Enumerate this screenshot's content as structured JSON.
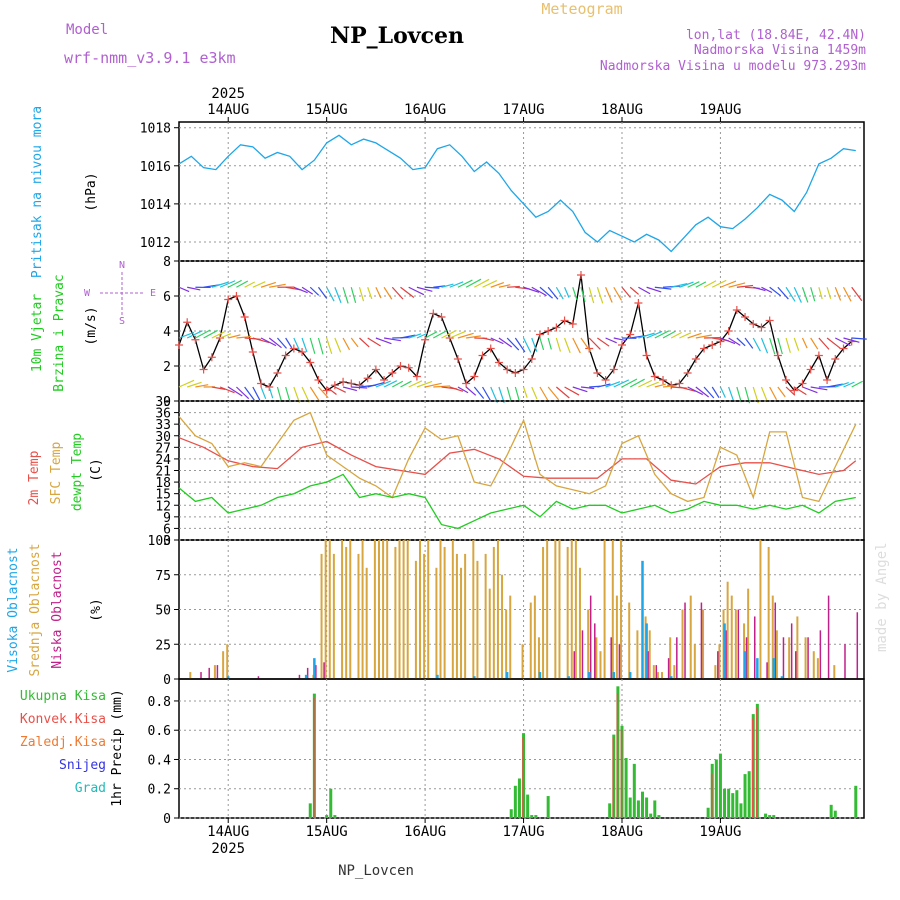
{
  "header": {
    "model_label": "Model",
    "model_name": "wrf-nmm_v3.9.1 e3km",
    "station": "NP_Lovcen",
    "meteogram": "Meteogram",
    "lonlat": "lon,lat (18.84E, 42.4N)",
    "elevation": "Nadmorska Visina 1459m",
    "elevation_model": "Nadmorska Visina u modelu 973.293m",
    "footer_station": "NP_Lovcen",
    "watermark": "made by Angel"
  },
  "colors": {
    "pressure": "#1ea6e8",
    "t2m": "#e8504a",
    "sfc": "#d8a640",
    "dewpt": "#22cc22",
    "wind_speed": "#000000",
    "wind_speed_marker": "#e8504a",
    "high_cloud": "#1ea6e8",
    "mid_cloud": "#d8a640",
    "low_cloud": "#c0208a",
    "total_precip": "#33bb33",
    "conv_precip": "#e8504a",
    "frozen_precip": "#ef7a30",
    "snow": "#3333dd",
    "hail": "#22bbbb",
    "purple_text": "#b060d0",
    "grid": "#999999"
  },
  "chart_data": [
    {
      "type": "line",
      "id": "pressure",
      "ylabel_lines": [
        "Pritisak na nivou mora"
      ],
      "unit": "(hPa)",
      "ylim": [
        1011,
        1018.3
      ],
      "yticks": [
        1012,
        1014,
        1016,
        1018
      ],
      "grid": true,
      "series": [
        {
          "name": "MSLP",
          "x": [
            0,
            3,
            6,
            9,
            12,
            15,
            18,
            21,
            24,
            27,
            30,
            33,
            36,
            39,
            42,
            45,
            48,
            51,
            54,
            57,
            60,
            63,
            66,
            69,
            72,
            75,
            78,
            81,
            84,
            87,
            90,
            93,
            96,
            99,
            102,
            105,
            108,
            111,
            114,
            117,
            120,
            123,
            126,
            129,
            132,
            135,
            138,
            141,
            144,
            147,
            150,
            153,
            156,
            159,
            162,
            165
          ],
          "values": [
            1016.1,
            1016.5,
            1015.9,
            1015.8,
            1016.5,
            1017.1,
            1017.0,
            1016.4,
            1016.7,
            1016.5,
            1015.8,
            1016.3,
            1017.2,
            1017.6,
            1017.1,
            1017.4,
            1017.2,
            1016.8,
            1016.4,
            1015.8,
            1015.9,
            1016.9,
            1017.1,
            1016.5,
            1015.7,
            1016.2,
            1015.6,
            1014.7,
            1014.0,
            1013.3,
            1013.6,
            1014.2,
            1013.6,
            1012.5,
            1012.0,
            1012.6,
            1012.3,
            1012.0,
            1012.4,
            1012.1,
            1011.5,
            1012.2,
            1012.9,
            1013.3,
            1012.8,
            1012.7,
            1013.2,
            1013.8,
            1014.5,
            1014.2,
            1013.6,
            1014.6,
            1016.1,
            1016.4,
            1016.9,
            1016.8
          ]
        }
      ]
    },
    {
      "type": "line",
      "id": "wind",
      "ylabel_lines": [
        "10m Vjetar",
        "Brzina i Pravac"
      ],
      "unit": "(m/s)",
      "compass": [
        "N",
        "W",
        "E",
        "S"
      ],
      "ylim": [
        0,
        8
      ],
      "yticks": [
        0,
        2,
        4,
        6,
        8
      ],
      "grid": true,
      "series": [
        {
          "name": "Brzina",
          "x": [
            0,
            2,
            4,
            6,
            8,
            10,
            12,
            14,
            16,
            18,
            20,
            22,
            24,
            26,
            28,
            30,
            32,
            34,
            36,
            38,
            40,
            42,
            44,
            46,
            48,
            50,
            52,
            54,
            56,
            58,
            60,
            62,
            64,
            66,
            68,
            70,
            72,
            74,
            76,
            78,
            80,
            82,
            84,
            86,
            88,
            90,
            92,
            94,
            96,
            98,
            100,
            102,
            104,
            106,
            108,
            110,
            112,
            114,
            116,
            118,
            120,
            122,
            124,
            126,
            128,
            130,
            132,
            134,
            136,
            138,
            140,
            142,
            144,
            146,
            148,
            150,
            152,
            154,
            156,
            158,
            160,
            162,
            164
          ],
          "values": [
            3.2,
            4.5,
            3.5,
            1.8,
            2.5,
            3.6,
            5.8,
            6.0,
            4.8,
            2.8,
            1.0,
            0.8,
            1.6,
            2.6,
            3.0,
            2.8,
            2.2,
            1.2,
            0.6,
            0.9,
            1.1,
            1.0,
            0.9,
            1.3,
            1.8,
            1.2,
            1.6,
            2.0,
            1.9,
            1.4,
            3.5,
            5.0,
            4.8,
            3.6,
            2.4,
            1.0,
            1.4,
            2.6,
            3.0,
            2.2,
            1.8,
            1.6,
            1.8,
            2.4,
            3.8,
            4.0,
            4.2,
            4.6,
            4.4,
            7.2,
            3.0,
            1.6,
            1.2,
            1.8,
            3.2,
            3.8,
            5.6,
            2.6,
            1.4,
            1.2,
            0.9,
            1.0,
            1.6,
            2.4,
            3.0,
            3.2,
            3.4,
            4.0,
            5.2,
            4.8,
            4.4,
            4.2,
            4.6,
            2.6,
            1.2,
            0.6,
            1.0,
            1.8,
            2.6,
            1.2,
            2.4,
            3.0,
            3.4
          ]
        }
      ],
      "barb_rows": [
        6.5,
        3.6,
        0.8
      ]
    },
    {
      "type": "line",
      "id": "temperature",
      "ylabel_lines": [
        "2m Temp",
        "SFC Temp",
        "dewpt Temp"
      ],
      "unit": "(C)",
      "ylim": [
        3,
        39
      ],
      "yticks": [
        3,
        6,
        9,
        12,
        15,
        18,
        21,
        24,
        27,
        30,
        33,
        36,
        39
      ],
      "grid": true,
      "series": [
        {
          "name": "2m Temp",
          "x": [
            0,
            6,
            12,
            18,
            24,
            30,
            36,
            42,
            48,
            54,
            60,
            66,
            72,
            78,
            84,
            90,
            96,
            102,
            108,
            114,
            120,
            126,
            132,
            138,
            144,
            150,
            156,
            162,
            165
          ],
          "values": [
            29.5,
            27,
            23.5,
            22,
            21.5,
            27,
            28.5,
            25,
            22,
            21,
            20,
            25.5,
            26.5,
            24,
            19.5,
            19,
            19,
            19,
            24,
            24,
            18.5,
            17.5,
            22,
            23,
            23,
            21.5,
            20,
            21,
            23.5
          ]
        },
        {
          "name": "SFC Temp",
          "x": [
            0,
            4,
            8,
            12,
            16,
            20,
            24,
            28,
            32,
            36,
            40,
            44,
            48,
            52,
            56,
            60,
            64,
            68,
            72,
            76,
            80,
            84,
            88,
            92,
            96,
            100,
            104,
            108,
            112,
            116,
            120,
            124,
            128,
            132,
            136,
            140,
            144,
            148,
            152,
            156,
            160,
            165
          ],
          "values": [
            35,
            30,
            28,
            22,
            23,
            22,
            28,
            34,
            36,
            25,
            22,
            19,
            17,
            14,
            24,
            32,
            29,
            30,
            18,
            17,
            25,
            34,
            20,
            17,
            16,
            15,
            17,
            28,
            30,
            20,
            15,
            13,
            14,
            27,
            25,
            14,
            31,
            31,
            14,
            13,
            22,
            33
          ]
        },
        {
          "name": "dewpt Temp",
          "x": [
            0,
            4,
            8,
            12,
            16,
            20,
            24,
            28,
            32,
            36,
            40,
            44,
            48,
            52,
            56,
            60,
            64,
            68,
            72,
            76,
            80,
            84,
            88,
            92,
            96,
            100,
            104,
            108,
            112,
            116,
            120,
            124,
            128,
            132,
            136,
            140,
            144,
            148,
            152,
            156,
            160,
            165
          ],
          "values": [
            16.5,
            13,
            14,
            10,
            11,
            12,
            14,
            15,
            17,
            18,
            20,
            14,
            15,
            14,
            15,
            14,
            7,
            6,
            8,
            10,
            11,
            12,
            9,
            13,
            11,
            12,
            12,
            10,
            11,
            12,
            10,
            11,
            13,
            12,
            12,
            11,
            12,
            11,
            12,
            10,
            13,
            14
          ]
        }
      ]
    },
    {
      "type": "bar",
      "id": "clouds",
      "ylabel_lines": [
        "Visoka Oblacnost",
        "Srednja Oblacnost",
        "Niska Oblacnost"
      ],
      "unit": "(%)",
      "ylim": [
        0,
        100
      ],
      "yticks": [
        0,
        25,
        50,
        75,
        100
      ],
      "grid": true,
      "series": [
        {
          "name": "Srednja Oblacnost",
          "x": [
            3,
            9,
            11,
            12,
            33,
            35,
            36,
            37,
            38,
            40,
            41,
            42,
            44,
            45,
            46,
            48,
            49,
            50,
            51,
            53,
            54,
            55,
            56,
            58,
            59,
            60,
            61,
            63,
            64,
            65,
            67,
            68,
            69,
            70,
            72,
            73,
            75,
            76,
            77,
            78,
            79,
            80,
            81,
            84,
            86,
            87,
            88,
            89,
            90,
            92,
            93,
            95,
            96,
            97,
            98,
            100,
            102,
            103,
            104,
            106,
            107,
            108,
            110,
            112,
            114,
            115,
            116,
            117,
            118,
            120,
            121,
            123,
            125,
            126,
            128,
            131,
            132,
            133,
            134,
            135,
            136,
            138,
            139,
            142,
            144,
            145,
            146,
            149,
            151,
            153,
            155,
            156,
            160
          ],
          "values": [
            5,
            10,
            20,
            25,
            3,
            90,
            100,
            100,
            90,
            100,
            95,
            100,
            90,
            100,
            80,
            100,
            100,
            100,
            100,
            95,
            100,
            100,
            100,
            85,
            100,
            90,
            100,
            80,
            100,
            95,
            100,
            90,
            80,
            90,
            100,
            85,
            90,
            65,
            95,
            100,
            75,
            50,
            60,
            25,
            55,
            60,
            30,
            95,
            100,
            100,
            100,
            95,
            100,
            100,
            80,
            50,
            30,
            20,
            100,
            100,
            60,
            100,
            55,
            35,
            45,
            35,
            10,
            5,
            5,
            30,
            10,
            50,
            60,
            25,
            50,
            10,
            25,
            50,
            70,
            60,
            50,
            40,
            65,
            100,
            95,
            60,
            35,
            30,
            45,
            30,
            20,
            15,
            10
          ]
        },
        {
          "name": "Niska Oblacnost",
          "x": [
            5,
            7,
            9,
            19,
            29,
            31,
            33,
            35,
            96,
            98,
            100,
            101,
            105,
            107,
            114,
            116,
            119,
            121,
            123,
            127,
            131,
            133,
            136,
            138,
            140,
            143,
            145,
            147,
            149,
            150,
            153,
            156,
            158,
            162,
            165
          ],
          "values": [
            5,
            8,
            10,
            2,
            3,
            8,
            10,
            12,
            20,
            35,
            60,
            40,
            30,
            25,
            20,
            10,
            15,
            30,
            55,
            55,
            20,
            35,
            50,
            30,
            45,
            12,
            55,
            30,
            40,
            20,
            30,
            35,
            60,
            25,
            48
          ]
        },
        {
          "name": "Visoka Oblacnost",
          "x": [
            12,
            31,
            33,
            63,
            72,
            80,
            88,
            95,
            100,
            106,
            110,
            113,
            114,
            120,
            133,
            138,
            141,
            145,
            147
          ],
          "values": [
            2,
            3,
            15,
            3,
            2,
            5,
            5,
            2,
            5,
            5,
            5,
            85,
            40,
            2,
            40,
            20,
            15,
            15,
            2
          ]
        }
      ]
    },
    {
      "type": "bar",
      "id": "precip",
      "ylabel_lines": [
        "1hr Precip (mm)"
      ],
      "legend": [
        "Ukupna Kisa",
        "Konvek.Kisa",
        "Zaledj.Kisa",
        "Snijeg",
        "Grad"
      ],
      "ylim": [
        0,
        0.95
      ],
      "yticks": [
        0,
        0.2,
        0.4,
        0.6,
        0.8
      ],
      "grid": true,
      "series": [
        {
          "name": "Ukupna Kisa",
          "x": [
            32,
            33,
            36,
            37,
            38,
            81,
            82,
            83,
            84,
            85,
            86,
            87,
            90,
            105,
            106,
            107,
            108,
            109,
            110,
            111,
            112,
            113,
            114,
            115,
            116,
            117,
            129,
            130,
            131,
            132,
            133,
            134,
            135,
            136,
            137,
            138,
            139,
            140,
            141,
            143,
            144,
            145,
            159,
            160,
            165
          ],
          "values": [
            0.1,
            0.85,
            0.02,
            0.2,
            0.02,
            0.06,
            0.22,
            0.27,
            0.58,
            0.16,
            0.02,
            0.02,
            0.15,
            0.1,
            0.57,
            0.9,
            0.63,
            0.41,
            0.14,
            0.37,
            0.12,
            0.18,
            0.14,
            0.03,
            0.12,
            0.02,
            0.07,
            0.37,
            0.4,
            0.44,
            0.2,
            0.2,
            0.17,
            0.19,
            0.1,
            0.3,
            0.32,
            0.71,
            0.78,
            0.03,
            0.02,
            0.02,
            0.09,
            0.05,
            0.22
          ]
        },
        {
          "name": "Konvek.Kisa",
          "x": [
            33,
            84,
            106,
            107,
            108,
            130,
            140,
            141
          ],
          "values": [
            0.82,
            0.55,
            0.55,
            0.85,
            0.6,
            0.3,
            0.68,
            0.75
          ]
        }
      ]
    }
  ],
  "xaxis": {
    "tick_labels": [
      "14AUG",
      "15AUG",
      "16AUG",
      "17AUG",
      "18AUG",
      "19AUG"
    ],
    "tick_hours": [
      12,
      36,
      60,
      84,
      108,
      132
    ],
    "year": "2025",
    "range_hours": [
      0,
      167
    ]
  }
}
